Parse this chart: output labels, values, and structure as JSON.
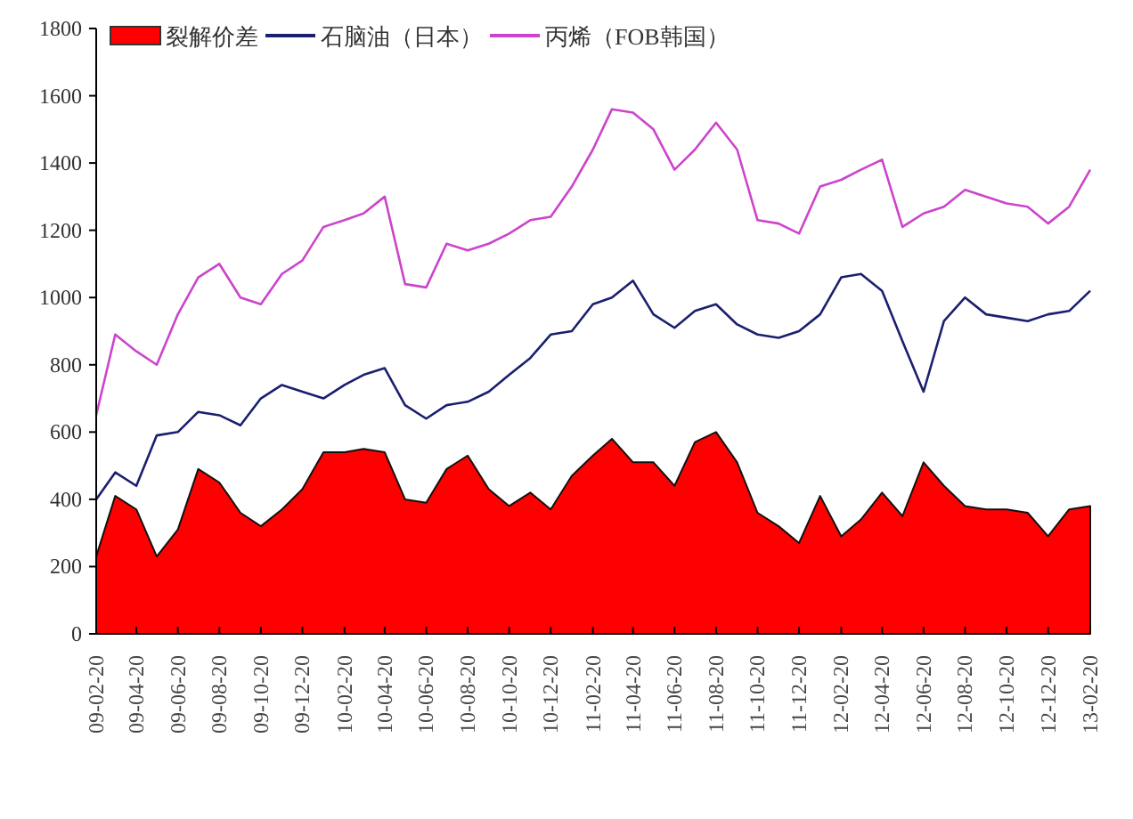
{
  "chart_data": {
    "type": "line",
    "x": [
      "2009-02-20",
      "2009-03-20",
      "2009-04-20",
      "2009-05-20",
      "2009-06-20",
      "2009-07-20",
      "2009-08-20",
      "2009-09-20",
      "2009-10-20",
      "2009-11-20",
      "2009-12-20",
      "2010-01-20",
      "2010-02-20",
      "2010-03-20",
      "2010-04-20",
      "2010-05-20",
      "2010-06-20",
      "2010-07-20",
      "2010-08-20",
      "2010-09-20",
      "2010-10-20",
      "2010-11-20",
      "2010-12-20",
      "2011-01-20",
      "2011-02-20",
      "2011-03-20",
      "2011-04-20",
      "2011-05-20",
      "2011-06-20",
      "2011-07-20",
      "2011-08-20",
      "2011-09-20",
      "2011-10-20",
      "2011-11-20",
      "2011-12-20",
      "2012-01-20",
      "2012-02-20",
      "2012-03-20",
      "2012-04-20",
      "2012-05-20",
      "2012-06-20",
      "2012-07-20",
      "2012-08-20",
      "2012-09-20",
      "2012-10-20",
      "2012-11-20",
      "2012-12-20",
      "2013-01-20",
      "2013-02-20"
    ],
    "series": [
      {
        "name": "裂解价差",
        "type": "area",
        "color": "#ff0000",
        "values": [
          230,
          410,
          370,
          230,
          310,
          490,
          450,
          360,
          320,
          370,
          430,
          540,
          540,
          550,
          540,
          400,
          390,
          490,
          530,
          430,
          380,
          420,
          370,
          470,
          530,
          580,
          510,
          510,
          440,
          570,
          600,
          510,
          360,
          320,
          270,
          410,
          290,
          340,
          420,
          350,
          510,
          440,
          380,
          370,
          370,
          360,
          290,
          370,
          380
        ]
      },
      {
        "name": "石脑油（日本）",
        "type": "line",
        "color": "#1a1f6e",
        "values": [
          400,
          480,
          440,
          590,
          600,
          660,
          650,
          620,
          700,
          740,
          720,
          700,
          740,
          770,
          790,
          680,
          640,
          680,
          690,
          720,
          770,
          820,
          890,
          900,
          980,
          1000,
          1050,
          950,
          910,
          960,
          980,
          920,
          890,
          880,
          900,
          950,
          1060,
          1070,
          1020,
          870,
          720,
          930,
          1000,
          950,
          940,
          930,
          950,
          960,
          1020
        ]
      },
      {
        "name": "丙烯（FOB韩国）",
        "type": "line",
        "color": "#cc44cc",
        "values": [
          650,
          890,
          840,
          800,
          950,
          1060,
          1100,
          1000,
          980,
          1070,
          1110,
          1210,
          1230,
          1250,
          1300,
          1040,
          1030,
          1160,
          1140,
          1160,
          1190,
          1230,
          1240,
          1330,
          1440,
          1560,
          1550,
          1500,
          1380,
          1440,
          1520,
          1440,
          1230,
          1220,
          1190,
          1330,
          1350,
          1380,
          1410,
          1210,
          1250,
          1270,
          1320,
          1300,
          1280,
          1270,
          1220,
          1270,
          1380
        ]
      }
    ],
    "xlim": [
      "2009-02-20",
      "2013-02-20"
    ],
    "xticks": [
      {
        "value": "2009-02-20",
        "label": "09-02-20"
      },
      {
        "value": "2009-04-20",
        "label": "09-04-20"
      },
      {
        "value": "2009-06-20",
        "label": "09-06-20"
      },
      {
        "value": "2009-08-20",
        "label": "09-08-20"
      },
      {
        "value": "2009-10-20",
        "label": "09-10-20"
      },
      {
        "value": "2009-12-20",
        "label": "09-12-20"
      },
      {
        "value": "2010-02-20",
        "label": "10-02-20"
      },
      {
        "value": "2010-04-20",
        "label": "10-04-20"
      },
      {
        "value": "2010-06-20",
        "label": "10-06-20"
      },
      {
        "value": "2010-08-20",
        "label": "10-08-20"
      },
      {
        "value": "2010-10-20",
        "label": "10-10-20"
      },
      {
        "value": "2010-12-20",
        "label": "10-12-20"
      },
      {
        "value": "2011-02-20",
        "label": "11-02-20"
      },
      {
        "value": "2011-04-20",
        "label": "11-04-20"
      },
      {
        "value": "2011-06-20",
        "label": "11-06-20"
      },
      {
        "value": "2011-08-20",
        "label": "11-08-20"
      },
      {
        "value": "2011-10-20",
        "label": "11-10-20"
      },
      {
        "value": "2011-12-20",
        "label": "11-12-20"
      },
      {
        "value": "2012-02-20",
        "label": "12-02-20"
      },
      {
        "value": "2012-04-20",
        "label": "12-04-20"
      },
      {
        "value": "2012-06-20",
        "label": "12-06-20"
      },
      {
        "value": "2012-08-20",
        "label": "12-08-20"
      },
      {
        "value": "2012-10-20",
        "label": "12-10-20"
      },
      {
        "value": "2012-12-20",
        "label": "12-12-20"
      },
      {
        "value": "2013-02-20",
        "label": "13-02-20"
      }
    ],
    "ylim": [
      0,
      1800
    ],
    "yticks": [
      0,
      200,
      400,
      600,
      800,
      1000,
      1200,
      1400,
      1600,
      1800
    ],
    "legend": "top left",
    "grid": false,
    "marker": "none"
  }
}
